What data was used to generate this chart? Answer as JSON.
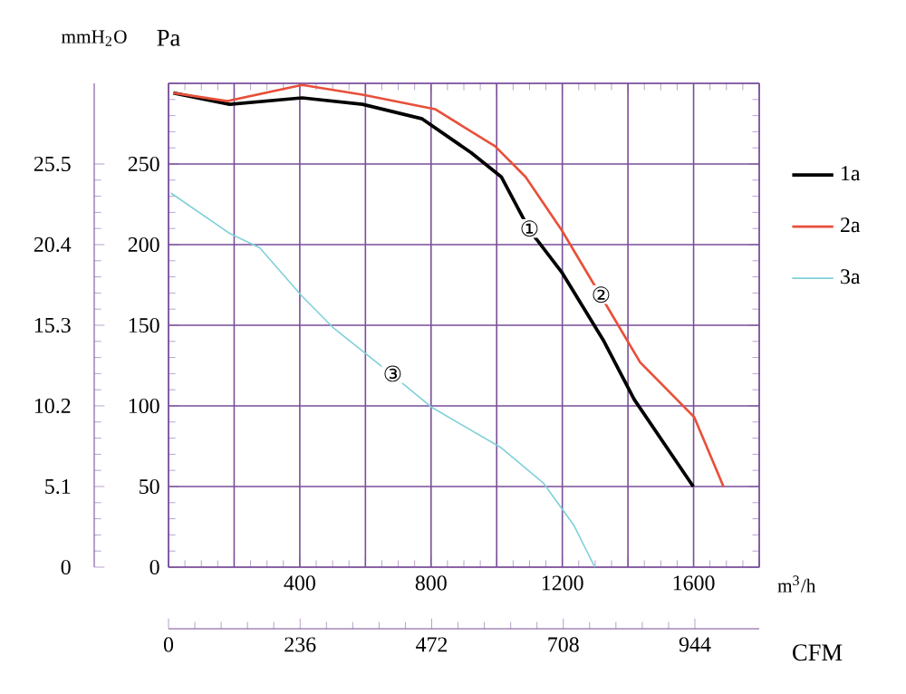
{
  "chart_data": {
    "type": "line",
    "xlabel": "m$^{3}$/h",
    "ylabel": "Pa",
    "y2label": "mmH$_{2}$O",
    "x2label": "CFM",
    "xlim": [
      0,
      1800
    ],
    "ylim": [
      0,
      300
    ],
    "y2lim": [
      0,
      30.6
    ],
    "x2lim": [
      0,
      1059.4
    ],
    "xticks": [
      {
        "value": 0,
        "label": null
      },
      {
        "value": 200,
        "label": null
      },
      400,
      {
        "value": 600,
        "label": null
      },
      800,
      {
        "value": 1000,
        "label": null
      },
      1200,
      {
        "value": 1400,
        "label": null
      },
      1600,
      {
        "value": 1800,
        "label": null
      }
    ],
    "yticks": [
      0,
      50,
      100,
      150,
      200,
      250,
      {
        "value": 300,
        "label": null
      }
    ],
    "y2ticks": [
      0,
      5.1,
      10.2,
      15.3,
      20.4,
      25.5
    ],
    "x2ticks": [
      0,
      236,
      472,
      708,
      944
    ],
    "grid": true,
    "legend": "right",
    "series": [
      {
        "name": "1a",
        "color": "#000000",
        "x": [
          15,
          186,
          407,
          591,
          773,
          922,
          1014,
          1100,
          1198,
          1327,
          1419,
          1599
        ],
        "values": [
          294,
          287,
          291,
          287,
          278,
          257,
          242,
          209,
          183,
          140,
          104,
          50
        ]
      },
      {
        "name": "2a",
        "color": "#e8503a",
        "x": [
          15,
          180,
          407,
          591,
          812,
          995,
          1088,
          1198,
          1318,
          1437,
          1602,
          1691
        ],
        "values": [
          294,
          289,
          299,
          293,
          284,
          261,
          242,
          209,
          168,
          127,
          93,
          50
        ]
      },
      {
        "name": "3a",
        "color": "#7fd0d8",
        "x": [
          7,
          186,
          278,
          407,
          499,
          683,
          803,
          1014,
          1143,
          1235,
          1299
        ],
        "values": [
          232,
          207,
          198,
          168,
          149,
          119,
          99,
          74,
          52,
          26,
          0
        ]
      }
    ],
    "annotations": [
      {
        "text": "①",
        "x": 1100,
        "y": 210
      },
      {
        "text": "②",
        "x": 1318,
        "y": 169
      },
      {
        "text": "③",
        "x": 683,
        "y": 120
      }
    ]
  }
}
